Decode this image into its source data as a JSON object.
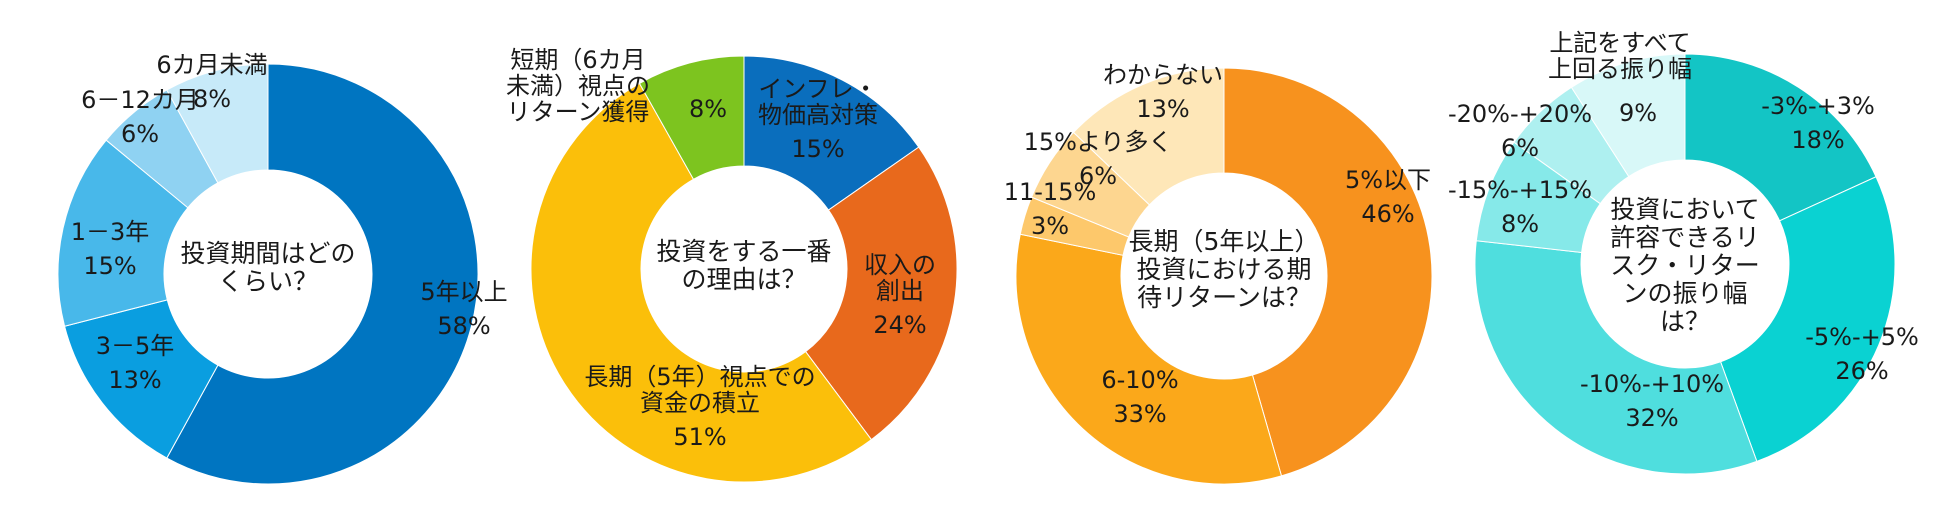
{
  "chart_data": [
    {
      "type": "donut",
      "title": "投資期間はどのくらい？",
      "title_lines": [
        "投資期間はどの",
        "くらい？"
      ],
      "colors": {
        "5年以上": "#0075c1",
        "3－5年": "#0a9ee0",
        "1－3年": "#48b8ea",
        "6－12カ月": "#8fd2f2",
        "6カ月未満": "#c7eaf9"
      },
      "slices": [
        {
          "label": "5年以上",
          "label_lines": [
            "5年以上"
          ],
          "value": 58,
          "value_label": "58%"
        },
        {
          "label": "3－5年",
          "label_lines": [
            "3－5年"
          ],
          "value": 13,
          "value_label": "13%"
        },
        {
          "label": "1－3年",
          "label_lines": [
            "1－3年"
          ],
          "value": 15,
          "value_label": "15%"
        },
        {
          "label": "6－12カ月",
          "label_lines": [
            "6－12カ月"
          ],
          "value": 6,
          "value_label": "6%"
        },
        {
          "label": "6カ月未満",
          "label_lines": [
            "6カ月未満"
          ],
          "value": 8,
          "value_label": "8%"
        }
      ]
    },
    {
      "type": "donut",
      "title": "投資をする一番の理由は？",
      "title_lines": [
        "投資をする一番",
        "の理由は？"
      ],
      "colors": {
        "インフレ・物価高対策": "#0a6ebd",
        "収入の創出": "#e8691c",
        "長期（5年）視点での資金の積立": "#fbbf0a",
        "短期（6カ月未満）視点のリターン獲得": "#7dc41f"
      },
      "slices": [
        {
          "label": "インフレ・物価高対策",
          "label_lines": [
            "インフレ・",
            "物価高対策"
          ],
          "value": 15,
          "value_label": "15%"
        },
        {
          "label": "収入の創出",
          "label_lines": [
            "収入の",
            "創出"
          ],
          "value": 24,
          "value_label": "24%"
        },
        {
          "label": "長期（5年）視点での資金の積立",
          "label_lines": [
            "長期（5年）視点での",
            "資金の積立"
          ],
          "value": 51,
          "value_label": "51%"
        },
        {
          "label": "短期（6カ月未満）視点のリターン獲得",
          "label_lines": [
            "短期（6カ月",
            "未満）視点の",
            "リターン獲得"
          ],
          "value": 8,
          "value_label": "8%"
        }
      ]
    },
    {
      "type": "donut",
      "title": "長期（5年以上）投資における期待リターンは？",
      "title_lines": [
        "長期（5年以上）",
        "投資における期",
        "待リターンは？"
      ],
      "colors": {
        "5%以下": "#f7921e",
        "6-10%": "#fba81a",
        "11-15%": "#fdc86b",
        "15%より多く": "#fdd690",
        "わからない": "#fee7b8"
      },
      "slices": [
        {
          "label": "5%以下",
          "label_lines": [
            "5%以下"
          ],
          "value": 46,
          "value_label": "46%"
        },
        {
          "label": "6-10%",
          "label_lines": [
            "6-10%"
          ],
          "value": 33,
          "value_label": "33%"
        },
        {
          "label": "11-15%",
          "label_lines": [
            "11-15%"
          ],
          "value": 3,
          "value_label": "3%"
        },
        {
          "label": "15%より多く",
          "label_lines": [
            "15%より多く"
          ],
          "value": 6,
          "value_label": "6%"
        },
        {
          "label": "わからない",
          "label_lines": [
            "わからない"
          ],
          "value": 13,
          "value_label": "13%"
        }
      ]
    },
    {
      "type": "donut",
      "title": "投資において許容できるリスク・リターンの振り幅は？",
      "title_lines": [
        "投資において",
        "許容できるリ",
        "スク・リター",
        "ンの振り幅",
        "は？"
      ],
      "colors": {
        "-3%-+3%": "#13c5c5",
        "-5%-+5%": "#0ad2d2",
        "-10%-+10%": "#4fdede",
        "-15%-+15%": "#86e9e9",
        "-20%-+20%": "#aef0f0",
        "上記をすべて上回る振り幅": "#d8f8f8"
      },
      "slices": [
        {
          "label": "-3%-+3%",
          "label_lines": [
            "-3%-+3%"
          ],
          "value": 18,
          "value_label": "18%"
        },
        {
          "label": "-5%-+5%",
          "label_lines": [
            "-5%-+5%"
          ],
          "value": 26,
          "value_label": "26%"
        },
        {
          "label": "-10%-+10%",
          "label_lines": [
            "-10%-+10%"
          ],
          "value": 32,
          "value_label": "32%"
        },
        {
          "label": "-15%-+15%",
          "label_lines": [
            "-15%-+15%"
          ],
          "value": 8,
          "value_label": "8%"
        },
        {
          "label": "-20%-+20%",
          "label_lines": [
            "-20%-+20%"
          ],
          "value": 6,
          "value_label": "6%"
        },
        {
          "label": "上記をすべて上回る振り幅",
          "label_lines": [
            "上記をすべて",
            "上回る振り幅"
          ],
          "value": 9,
          "value_label": "9%"
        }
      ]
    }
  ]
}
